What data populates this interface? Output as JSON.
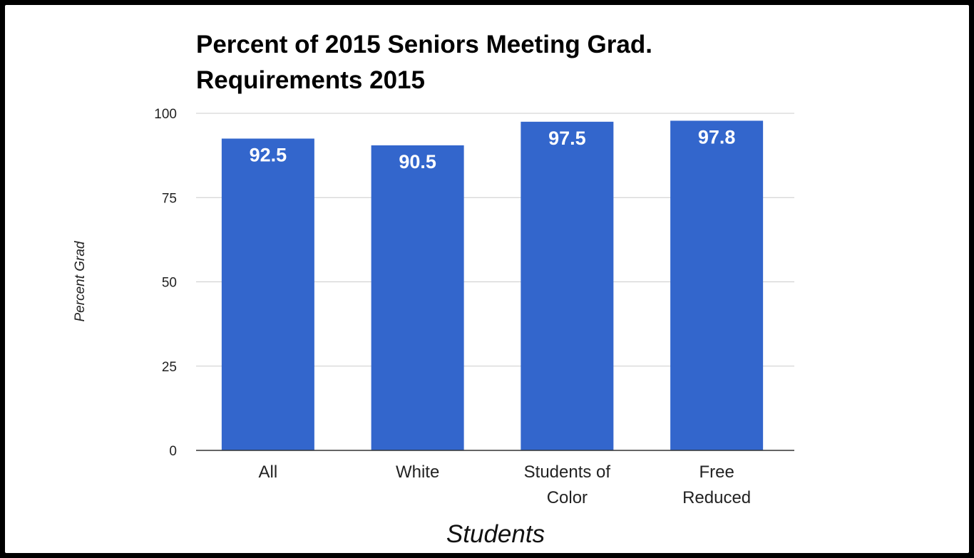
{
  "chart_data": {
    "type": "bar",
    "title_lines": [
      "Percent of 2015 Seniors Meeting Grad.",
      "Requirements 2015"
    ],
    "xlabel": "Students",
    "ylabel": "Percent Grad",
    "categories": [
      [
        "All"
      ],
      [
        "White"
      ],
      [
        "Students of",
        "Color"
      ],
      [
        "Free",
        "Reduced"
      ]
    ],
    "values": [
      92.5,
      90.5,
      97.5,
      97.8
    ],
    "data_labels": [
      "92.5",
      "90.5",
      "97.5",
      "97.8"
    ],
    "ylim": [
      0,
      100
    ],
    "yticks": [
      0,
      25,
      50,
      75,
      100
    ],
    "grid": true,
    "legend": "none",
    "colors": {
      "bar": "#3366cc",
      "grid": "#cccccc",
      "baseline": "#333333",
      "frame": "#000000"
    }
  }
}
